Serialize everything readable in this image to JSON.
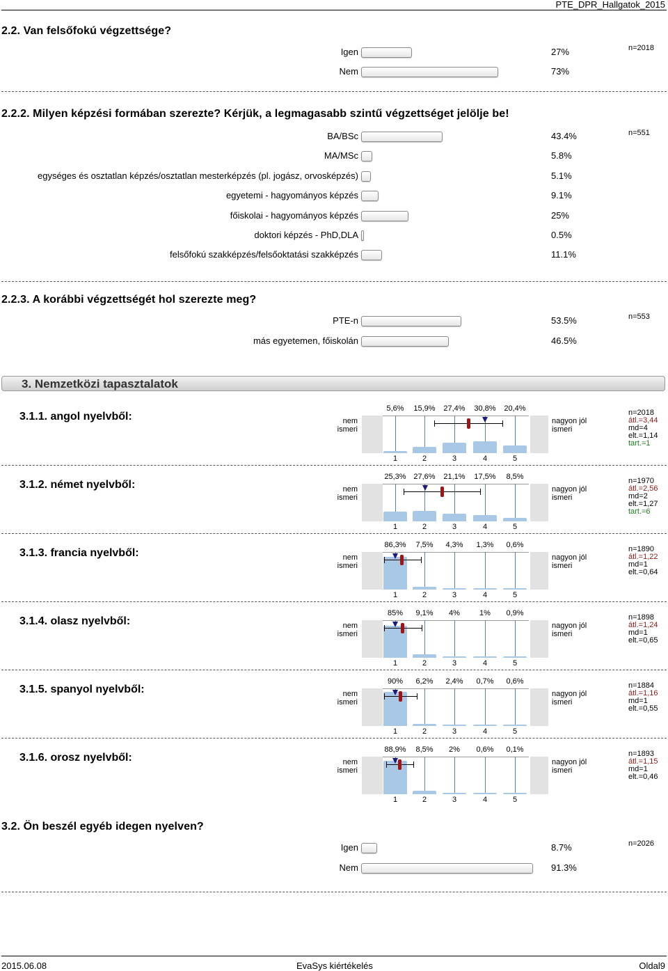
{
  "header": {
    "doc_id": "PTE_DPR_Hallgatok_2015"
  },
  "q22": {
    "title": "2.2. Van felsőfokú végzettsége?",
    "n": "n=2018",
    "options": [
      {
        "label": "Igen",
        "pct": "27%",
        "value": 27
      },
      {
        "label": "Nem",
        "pct": "73%",
        "value": 73
      }
    ]
  },
  "q222": {
    "title": "2.2.2. Milyen képzési formában szerezte? Kérjük, a legmagasabb szintű végzettséget jelölje be!",
    "n": "n=551",
    "options": [
      {
        "label": "BA/BSc",
        "pct": "43.4%",
        "value": 43.4
      },
      {
        "label": "MA/MSc",
        "pct": "5.8%",
        "value": 5.8
      },
      {
        "label": "egységes és osztatlan képzés/osztatlan mesterképzés (pl. jogász, orvosképzés)",
        "pct": "5.1%",
        "value": 5.1
      },
      {
        "label": "egyetemi - hagyományos képzés",
        "pct": "9.1%",
        "value": 9.1
      },
      {
        "label": "főiskolai - hagyományos képzés",
        "pct": "25%",
        "value": 25
      },
      {
        "label": "doktori képzés - PhD,DLA",
        "pct": "0.5%",
        "value": 0.5
      },
      {
        "label": "felsőfokú szakképzés/felsőoktatási szakképzés",
        "pct": "11.1%",
        "value": 11.1
      }
    ]
  },
  "q223": {
    "title": "2.2.3. A korábbi végzettségét hol szerezte meg?",
    "n": "n=553",
    "options": [
      {
        "label": "PTE-n",
        "pct": "53.5%",
        "value": 53.5
      },
      {
        "label": "más egyetemen, főiskolán",
        "pct": "46.5%",
        "value": 46.5
      }
    ]
  },
  "section3": {
    "title": "3. Nemzetközi tapasztalatok"
  },
  "scale_labels": {
    "left_1": "nem",
    "left_2": "ismeri",
    "right_1": "nagyon jól",
    "right_2": "ismeri",
    "ticks": [
      "1",
      "2",
      "3",
      "4",
      "5"
    ]
  },
  "languages": [
    {
      "title": "3.1.1. angol nyelvből:",
      "pcts": [
        "5,6%",
        "15,9%",
        "27,4%",
        "30,8%",
        "20,4%"
      ],
      "values": [
        5.6,
        15.9,
        27.4,
        30.8,
        20.4
      ],
      "n": "n=2018",
      "avg": "átl.=3,44",
      "md": "md=4",
      "elt": "elt.=1,14",
      "tart": "tart.=1",
      "mean": 3.44,
      "median": 4,
      "sd": 1.14
    },
    {
      "title": "3.1.2. német nyelvből:",
      "pcts": [
        "25,3%",
        "27,6%",
        "21,1%",
        "17,5%",
        "8,5%"
      ],
      "values": [
        25.3,
        27.6,
        21.1,
        17.5,
        8.5
      ],
      "n": "n=1970",
      "avg": "átl.=2,56",
      "md": "md=2",
      "elt": "elt.=1,27",
      "tart": "tart.=6",
      "mean": 2.56,
      "median": 2,
      "sd": 1.27
    },
    {
      "title": "3.1.3. francia nyelvből:",
      "pcts": [
        "86,3%",
        "7,5%",
        "4,3%",
        "1,3%",
        "0,6%"
      ],
      "values": [
        86.3,
        7.5,
        4.3,
        1.3,
        0.6
      ],
      "n": "n=1890",
      "avg": "átl.=1,22",
      "md": "md=1",
      "elt": "elt.=0,64",
      "tart": "",
      "mean": 1.22,
      "median": 1,
      "sd": 0.64
    },
    {
      "title": "3.1.4. olasz nyelvből:",
      "pcts": [
        "85%",
        "9,1%",
        "4%",
        "1%",
        "0,9%"
      ],
      "values": [
        85,
        9.1,
        4,
        1,
        0.9
      ],
      "n": "n=1898",
      "avg": "átl.=1,24",
      "md": "md=1",
      "elt": "elt.=0,65",
      "tart": "",
      "mean": 1.24,
      "median": 1,
      "sd": 0.65
    },
    {
      "title": "3.1.5. spanyol nyelvből:",
      "pcts": [
        "90%",
        "6,2%",
        "2,4%",
        "0,7%",
        "0,6%"
      ],
      "values": [
        90,
        6.2,
        2.4,
        0.7,
        0.6
      ],
      "n": "n=1884",
      "avg": "átl.=1,16",
      "md": "md=1",
      "elt": "elt.=0,55",
      "tart": "",
      "mean": 1.16,
      "median": 1,
      "sd": 0.55
    },
    {
      "title": "3.1.6. orosz nyelvből:",
      "pcts": [
        "88,9%",
        "8,5%",
        "2%",
        "0,6%",
        "0,1%"
      ],
      "values": [
        88.9,
        8.5,
        2,
        0.6,
        0.1
      ],
      "n": "n=1893",
      "avg": "átl.=1,15",
      "md": "md=1",
      "elt": "elt.=0,46",
      "tart": "",
      "mean": 1.15,
      "median": 1,
      "sd": 0.46
    }
  ],
  "q32": {
    "title": "3.2. Ön beszél egyéb idegen nyelven?",
    "n": "n=2026",
    "options": [
      {
        "label": "Igen",
        "pct": "8.7%",
        "value": 8.7
      },
      {
        "label": "Nem",
        "pct": "91.3%",
        "value": 91.3
      }
    ]
  },
  "footer": {
    "date": "2015.06.08",
    "center": "EvaSys kiértékelés",
    "page": "Oldal9"
  }
}
